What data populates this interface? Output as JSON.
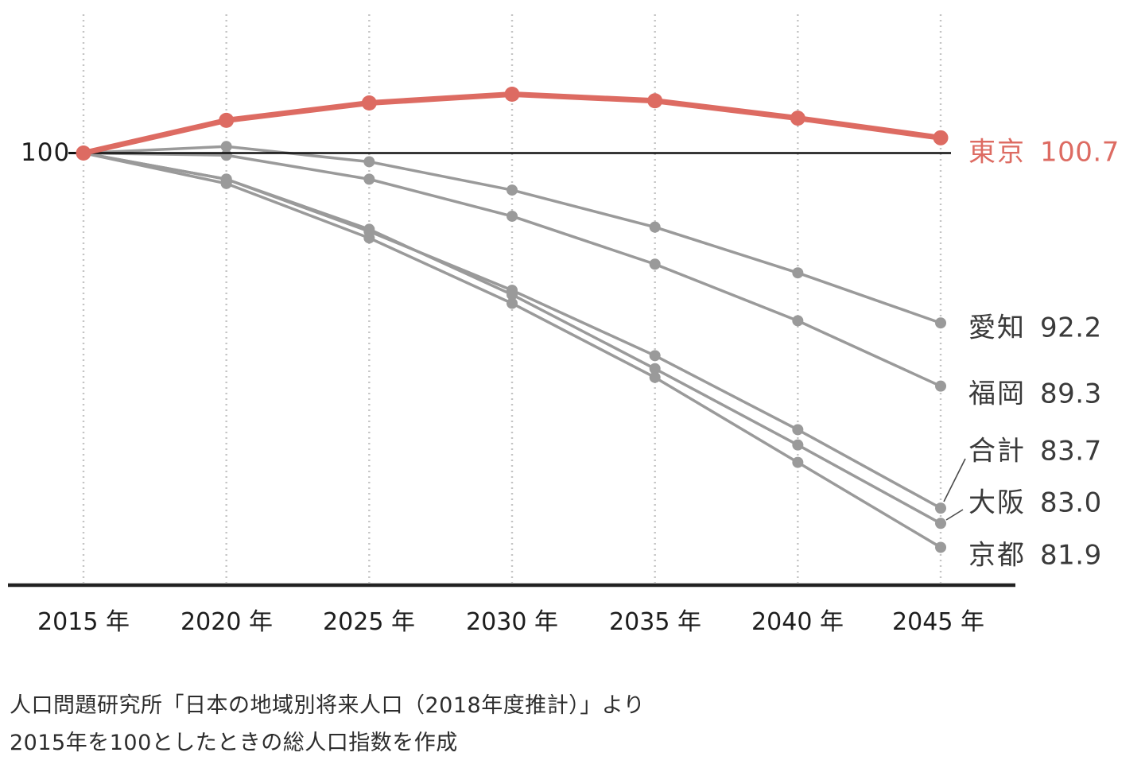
{
  "chart_data": {
    "type": "line",
    "title": "",
    "x": [
      2015,
      2020,
      2025,
      2030,
      2035,
      2040,
      2045
    ],
    "x_labels": [
      "2015 年",
      "2020 年",
      "2025 年",
      "2030 年",
      "2035 年",
      "2040 年",
      "2045 年"
    ],
    "baseline": {
      "value": 100,
      "label": "100"
    },
    "ylim": [
      80,
      104
    ],
    "grid": "vertical-dotted",
    "legend_position": "right-of-line-endpoints",
    "series": [
      {
        "name": "東京",
        "final_value": "100.7",
        "color": "#dd6b62",
        "label_color": "#dd6b62",
        "emphasis": true,
        "values": [
          100,
          101.5,
          102.3,
          102.7,
          102.4,
          101.6,
          100.7
        ]
      },
      {
        "name": "愛知",
        "final_value": "92.2",
        "color": "#9a9a9a",
        "label_color": "#3a3a3a",
        "emphasis": false,
        "values": [
          100,
          100.3,
          99.6,
          98.3,
          96.6,
          94.5,
          92.2
        ]
      },
      {
        "name": "福岡",
        "final_value": "89.3",
        "color": "#9a9a9a",
        "label_color": "#3a3a3a",
        "emphasis": false,
        "values": [
          100,
          99.9,
          98.8,
          97.1,
          94.9,
          92.3,
          89.3
        ]
      },
      {
        "name": "合計",
        "final_value": "83.7",
        "color": "#9a9a9a",
        "label_color": "#3a3a3a",
        "emphasis": false,
        "values": [
          100,
          98.8,
          96.4,
          93.7,
          90.7,
          87.3,
          83.7
        ]
      },
      {
        "name": "大阪",
        "final_value": "83.0",
        "color": "#9a9a9a",
        "label_color": "#3a3a3a",
        "emphasis": false,
        "values": [
          100,
          98.8,
          96.5,
          93.5,
          90.1,
          86.6,
          83.0
        ]
      },
      {
        "name": "京都",
        "final_value": "81.9",
        "color": "#9a9a9a",
        "label_color": "#3a3a3a",
        "emphasis": false,
        "values": [
          100,
          98.6,
          96.1,
          93.1,
          89.7,
          85.8,
          81.9
        ]
      }
    ],
    "source_note": [
      "人口問題研究所「日本の地域別将来人口（2018年度推計）」より",
      "2015年を100としたときの総人口指数を作成"
    ]
  },
  "colors": {
    "tokyo_red": "#dd6b62",
    "series_gray": "#9a9a9a",
    "label_dark": "#3a3a3a",
    "grid_dotted": "#c4c4c4",
    "axis_black": "#222222",
    "baseline_black": "#111111",
    "leader_line": "#4a4a4a"
  }
}
